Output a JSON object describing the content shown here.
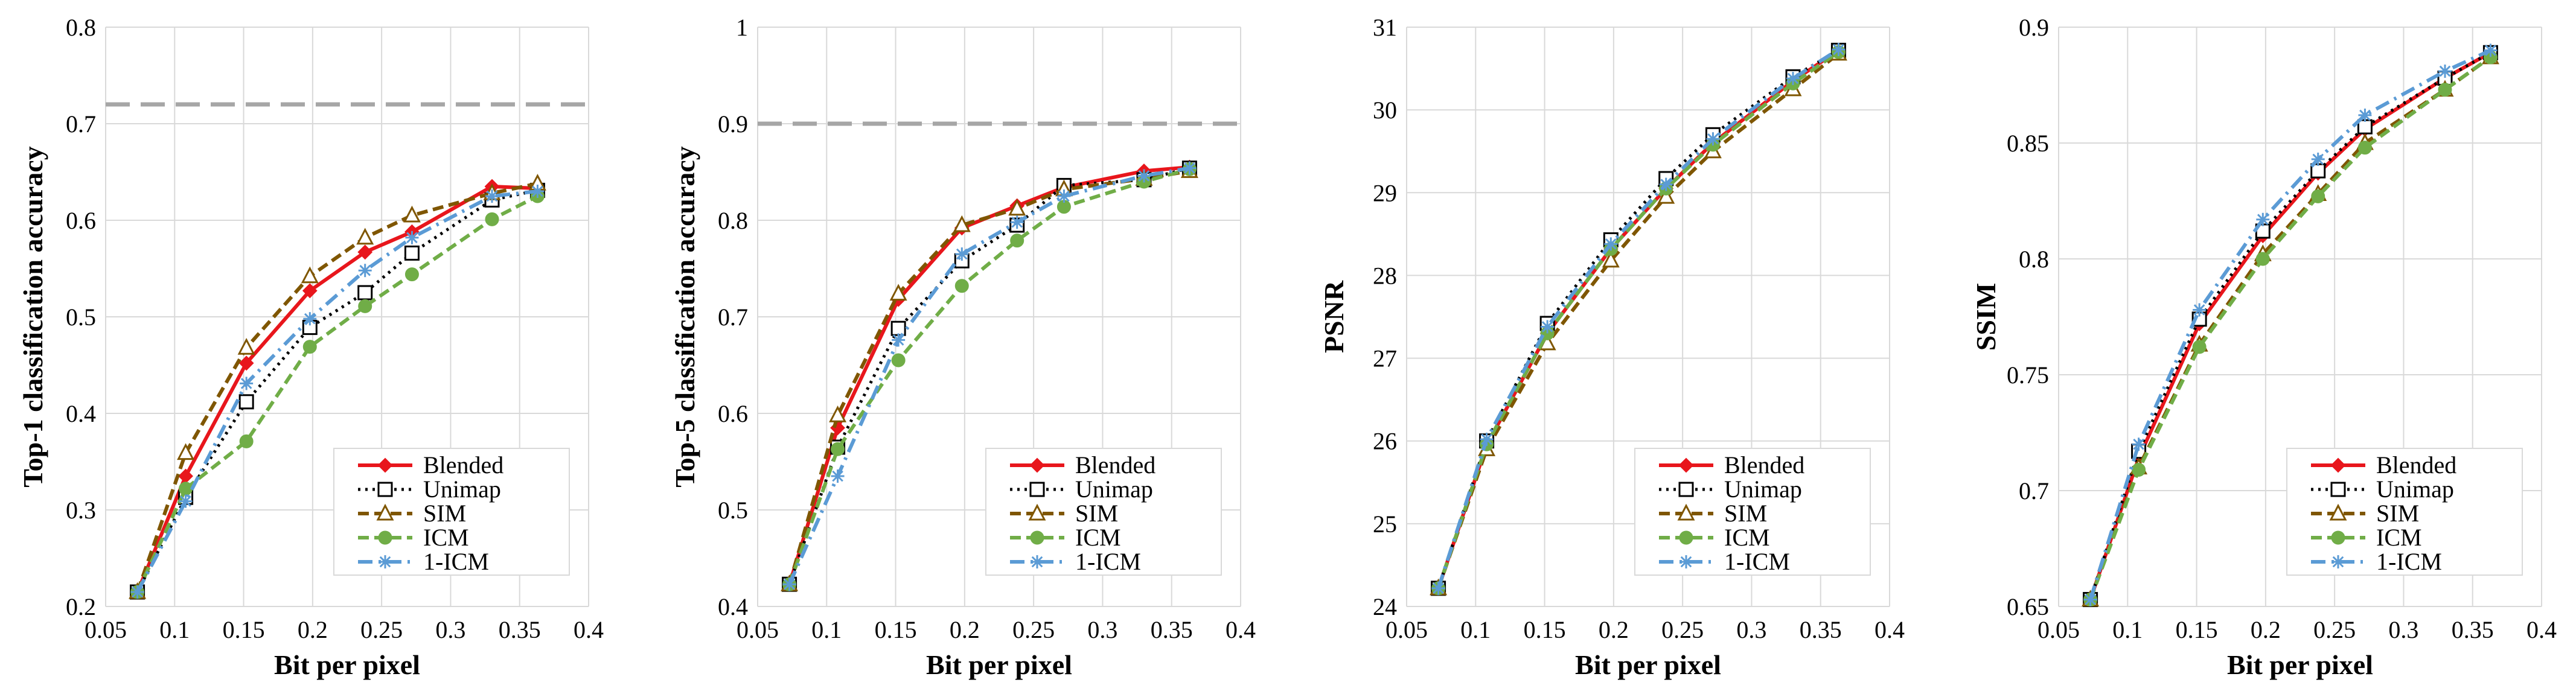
{
  "figure": {
    "colors": {
      "Blended": "#e8161c",
      "Unimap": "#000000",
      "SIM": "#7f5600",
      "ICM": "#70ad47",
      "1-ICM": "#5b9bd5",
      "reference_line": "#a6a6a6",
      "grid": "#d9d9d9"
    },
    "legend_labels": [
      "Blended",
      "Unimap",
      "SIM",
      "ICM",
      "1-ICM"
    ]
  },
  "chart_data": [
    {
      "type": "line",
      "title": "",
      "xlabel": "Bit per pixel",
      "ylabel": "Top-1 classification accuracy",
      "xlim": [
        0.05,
        0.4
      ],
      "ylim": [
        0.2,
        0.8
      ],
      "x_ticks": [
        "0.05",
        "0.1",
        "0.15",
        "0.2",
        "0.25",
        "0.3",
        "0.35",
        "0.4"
      ],
      "y_ticks": [
        "0.2",
        "0.3",
        "0.4",
        "0.5",
        "0.6",
        "0.7",
        "0.8"
      ],
      "reference_line": 0.72,
      "legend_position": "bottom-right",
      "series": [
        {
          "name": "Blended",
          "x": [
            0.073,
            0.108,
            0.152,
            0.198,
            0.238,
            0.272,
            0.33,
            0.363
          ],
          "y": [
            0.215,
            0.335,
            0.452,
            0.527,
            0.567,
            0.588,
            0.635,
            0.633
          ]
        },
        {
          "name": "Unimap",
          "x": [
            0.073,
            0.108,
            0.152,
            0.198,
            0.238,
            0.272,
            0.33,
            0.363
          ],
          "y": [
            0.215,
            0.313,
            0.412,
            0.489,
            0.525,
            0.566,
            0.621,
            0.631
          ]
        },
        {
          "name": "SIM",
          "x": [
            0.073,
            0.108,
            0.152,
            0.198,
            0.238,
            0.272,
            0.33,
            0.363
          ],
          "y": [
            0.215,
            0.359,
            0.468,
            0.542,
            0.582,
            0.605,
            0.628,
            0.638
          ]
        },
        {
          "name": "ICM",
          "x": [
            0.073,
            0.108,
            0.152,
            0.198,
            0.238,
            0.272,
            0.33,
            0.363
          ],
          "y": [
            0.215,
            0.322,
            0.371,
            0.469,
            0.511,
            0.544,
            0.601,
            0.625
          ]
        },
        {
          "name": "1-ICM",
          "x": [
            0.073,
            0.108,
            0.152,
            0.198,
            0.238,
            0.272,
            0.33,
            0.363
          ],
          "y": [
            0.215,
            0.309,
            0.431,
            0.498,
            0.548,
            0.582,
            0.625,
            0.63
          ]
        }
      ]
    },
    {
      "type": "line",
      "title": "",
      "xlabel": "Bit per pixel",
      "ylabel": "Top-5 classification accuracy",
      "xlim": [
        0.05,
        0.4
      ],
      "ylim": [
        0.4,
        1.0
      ],
      "x_ticks": [
        "0.05",
        "0.1",
        "0.15",
        "0.2",
        "0.25",
        "0.3",
        "0.35",
        "0.4"
      ],
      "y_ticks": [
        "0.4",
        "0.5",
        "0.6",
        "0.7",
        "0.8",
        "0.9",
        "1"
      ],
      "reference_line": 0.9,
      "legend_position": "bottom-right",
      "series": [
        {
          "name": "Blended",
          "x": [
            0.073,
            0.108,
            0.152,
            0.198,
            0.238,
            0.272,
            0.33,
            0.363
          ],
          "y": [
            0.423,
            0.585,
            0.718,
            0.792,
            0.815,
            0.834,
            0.851,
            0.855
          ]
        },
        {
          "name": "Unimap",
          "x": [
            0.073,
            0.108,
            0.152,
            0.198,
            0.238,
            0.272,
            0.33,
            0.363
          ],
          "y": [
            0.423,
            0.565,
            0.688,
            0.758,
            0.795,
            0.836,
            0.842,
            0.854
          ]
        },
        {
          "name": "SIM",
          "x": [
            0.073,
            0.108,
            0.152,
            0.198,
            0.238,
            0.272,
            0.33,
            0.363
          ],
          "y": [
            0.423,
            0.598,
            0.724,
            0.795,
            0.812,
            0.832,
            0.843,
            0.851
          ]
        },
        {
          "name": "ICM",
          "x": [
            0.073,
            0.108,
            0.152,
            0.198,
            0.238,
            0.272,
            0.33,
            0.363
          ],
          "y": [
            0.423,
            0.563,
            0.655,
            0.732,
            0.779,
            0.814,
            0.84,
            0.853
          ]
        },
        {
          "name": "1-ICM",
          "x": [
            0.073,
            0.108,
            0.152,
            0.198,
            0.238,
            0.272,
            0.33,
            0.363
          ],
          "y": [
            0.423,
            0.535,
            0.676,
            0.765,
            0.798,
            0.825,
            0.846,
            0.854
          ]
        }
      ]
    },
    {
      "type": "line",
      "title": "",
      "xlabel": "Bit per pixel",
      "ylabel": "PSNR",
      "xlim": [
        0.05,
        0.4
      ],
      "ylim": [
        24,
        31
      ],
      "x_ticks": [
        "0.05",
        "0.1",
        "0.15",
        "0.2",
        "0.25",
        "0.3",
        "0.35",
        "0.4"
      ],
      "y_ticks": [
        "24",
        "25",
        "26",
        "27",
        "28",
        "29",
        "30",
        "31"
      ],
      "reference_line": null,
      "legend_position": "bottom-right",
      "series": [
        {
          "name": "Blended",
          "x": [
            0.073,
            0.108,
            0.152,
            0.198,
            0.238,
            0.272,
            0.33,
            0.363
          ],
          "y": [
            24.22,
            25.95,
            27.3,
            28.32,
            29.05,
            29.6,
            30.35,
            30.72
          ]
        },
        {
          "name": "Unimap",
          "x": [
            0.073,
            0.108,
            0.152,
            0.198,
            0.238,
            0.272,
            0.33,
            0.363
          ],
          "y": [
            24.22,
            26.0,
            27.42,
            28.43,
            29.17,
            29.7,
            30.4,
            30.72
          ]
        },
        {
          "name": "SIM",
          "x": [
            0.073,
            0.108,
            0.152,
            0.198,
            0.238,
            0.272,
            0.33,
            0.363
          ],
          "y": [
            24.22,
            25.9,
            27.18,
            28.18,
            28.95,
            29.5,
            30.25,
            30.68
          ]
        },
        {
          "name": "ICM",
          "x": [
            0.073,
            0.108,
            0.152,
            0.198,
            0.238,
            0.272,
            0.33,
            0.363
          ],
          "y": [
            24.22,
            25.96,
            27.3,
            28.32,
            29.05,
            29.58,
            30.32,
            30.7
          ]
        },
        {
          "name": "1-ICM",
          "x": [
            0.073,
            0.108,
            0.152,
            0.198,
            0.238,
            0.272,
            0.33,
            0.363
          ],
          "y": [
            24.22,
            26.02,
            27.38,
            28.38,
            29.1,
            29.65,
            30.38,
            30.73
          ]
        }
      ]
    },
    {
      "type": "line",
      "title": "",
      "xlabel": "Bit per pixel",
      "ylabel": "SSIM",
      "xlim": [
        0.05,
        0.4
      ],
      "ylim": [
        0.65,
        0.9
      ],
      "x_ticks": [
        "0.05",
        "0.1",
        "0.15",
        "0.2",
        "0.25",
        "0.3",
        "0.35",
        "0.4"
      ],
      "y_ticks": [
        "0.65",
        "0.7",
        "0.75",
        "0.8",
        "0.85",
        "0.9"
      ],
      "reference_line": null,
      "legend_position": "bottom-right",
      "series": [
        {
          "name": "Blended",
          "x": [
            0.073,
            0.108,
            0.152,
            0.198,
            0.238,
            0.272,
            0.33,
            0.363
          ],
          "y": [
            0.653,
            0.714,
            0.772,
            0.81,
            0.837,
            0.856,
            0.878,
            0.889
          ]
        },
        {
          "name": "Unimap",
          "x": [
            0.073,
            0.108,
            0.152,
            0.198,
            0.238,
            0.272,
            0.33,
            0.363
          ],
          "y": [
            0.653,
            0.717,
            0.774,
            0.812,
            0.838,
            0.857,
            0.878,
            0.889
          ]
        },
        {
          "name": "SIM",
          "x": [
            0.073,
            0.108,
            0.152,
            0.198,
            0.238,
            0.272,
            0.33,
            0.363
          ],
          "y": [
            0.653,
            0.71,
            0.763,
            0.802,
            0.828,
            0.85,
            0.873,
            0.887
          ]
        },
        {
          "name": "ICM",
          "x": [
            0.073,
            0.108,
            0.152,
            0.198,
            0.238,
            0.272,
            0.33,
            0.363
          ],
          "y": [
            0.653,
            0.709,
            0.762,
            0.8,
            0.827,
            0.848,
            0.873,
            0.887
          ]
        },
        {
          "name": "1-ICM",
          "x": [
            0.073,
            0.108,
            0.152,
            0.198,
            0.238,
            0.272,
            0.33,
            0.363
          ],
          "y": [
            0.653,
            0.72,
            0.778,
            0.817,
            0.843,
            0.862,
            0.881,
            0.89
          ]
        }
      ]
    }
  ]
}
